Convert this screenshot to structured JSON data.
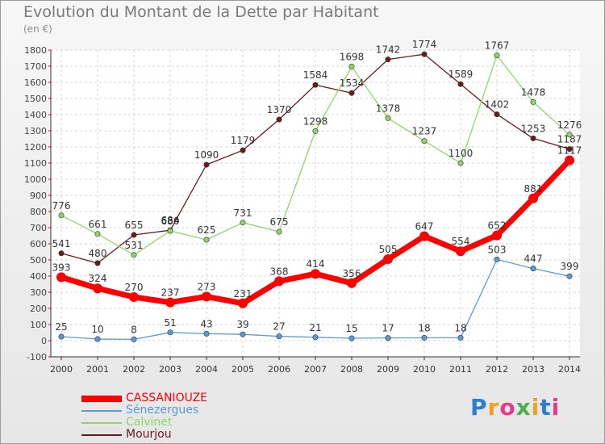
{
  "title": "Evolution du Montant de la Dette par Habitant",
  "subtitle": "(en €)",
  "brand": "Proxiti",
  "chart_data": {
    "type": "line",
    "x": [
      "2000",
      "2001",
      "2002",
      "2003",
      "2004",
      "2005",
      "2006",
      "2007",
      "2008",
      "2009",
      "2010",
      "2011",
      "2012",
      "2013",
      "2014"
    ],
    "ylim": [
      -100,
      1800
    ],
    "yticks": [
      -100,
      0,
      100,
      200,
      300,
      400,
      500,
      600,
      700,
      800,
      900,
      1000,
      1100,
      1200,
      1300,
      1400,
      1500,
      1600,
      1700,
      1800
    ],
    "grid": true,
    "legend_position": "bottom-left",
    "series": [
      {
        "name": "Mourjou",
        "color": "#6b1a1a",
        "values": [
          541,
          480,
          655,
          684,
          1090,
          1179,
          1370,
          1584,
          1534,
          1742,
          1774,
          1589,
          1402,
          1253,
          1187
        ]
      },
      {
        "name": "Calvinet",
        "color": "#8fd66a",
        "values": [
          776,
          661,
          531,
          680,
          625,
          731,
          675,
          1298,
          1698,
          1378,
          1237,
          1100,
          1767,
          1478,
          1276
        ]
      },
      {
        "name": "Sénezergues",
        "color": "#5a9bd6",
        "values": [
          25,
          10,
          8,
          51,
          43,
          39,
          27,
          21,
          15,
          17,
          18,
          18,
          503,
          447,
          399
        ]
      },
      {
        "name": "CASSANIOUZE",
        "color": "#ff0000",
        "values": [
          393,
          324,
          270,
          237,
          273,
          231,
          368,
          414,
          356,
          505,
          647,
          554,
          652,
          881,
          1117
        ]
      }
    ]
  },
  "legend": [
    {
      "name": "CASSANIOUZE",
      "color": "#ff0000"
    },
    {
      "name": "Sénezergues",
      "color": "#5a9bd6"
    },
    {
      "name": "Calvinet",
      "color": "#8fd66a"
    },
    {
      "name": "Mourjou",
      "color": "#6b1a1a"
    }
  ]
}
